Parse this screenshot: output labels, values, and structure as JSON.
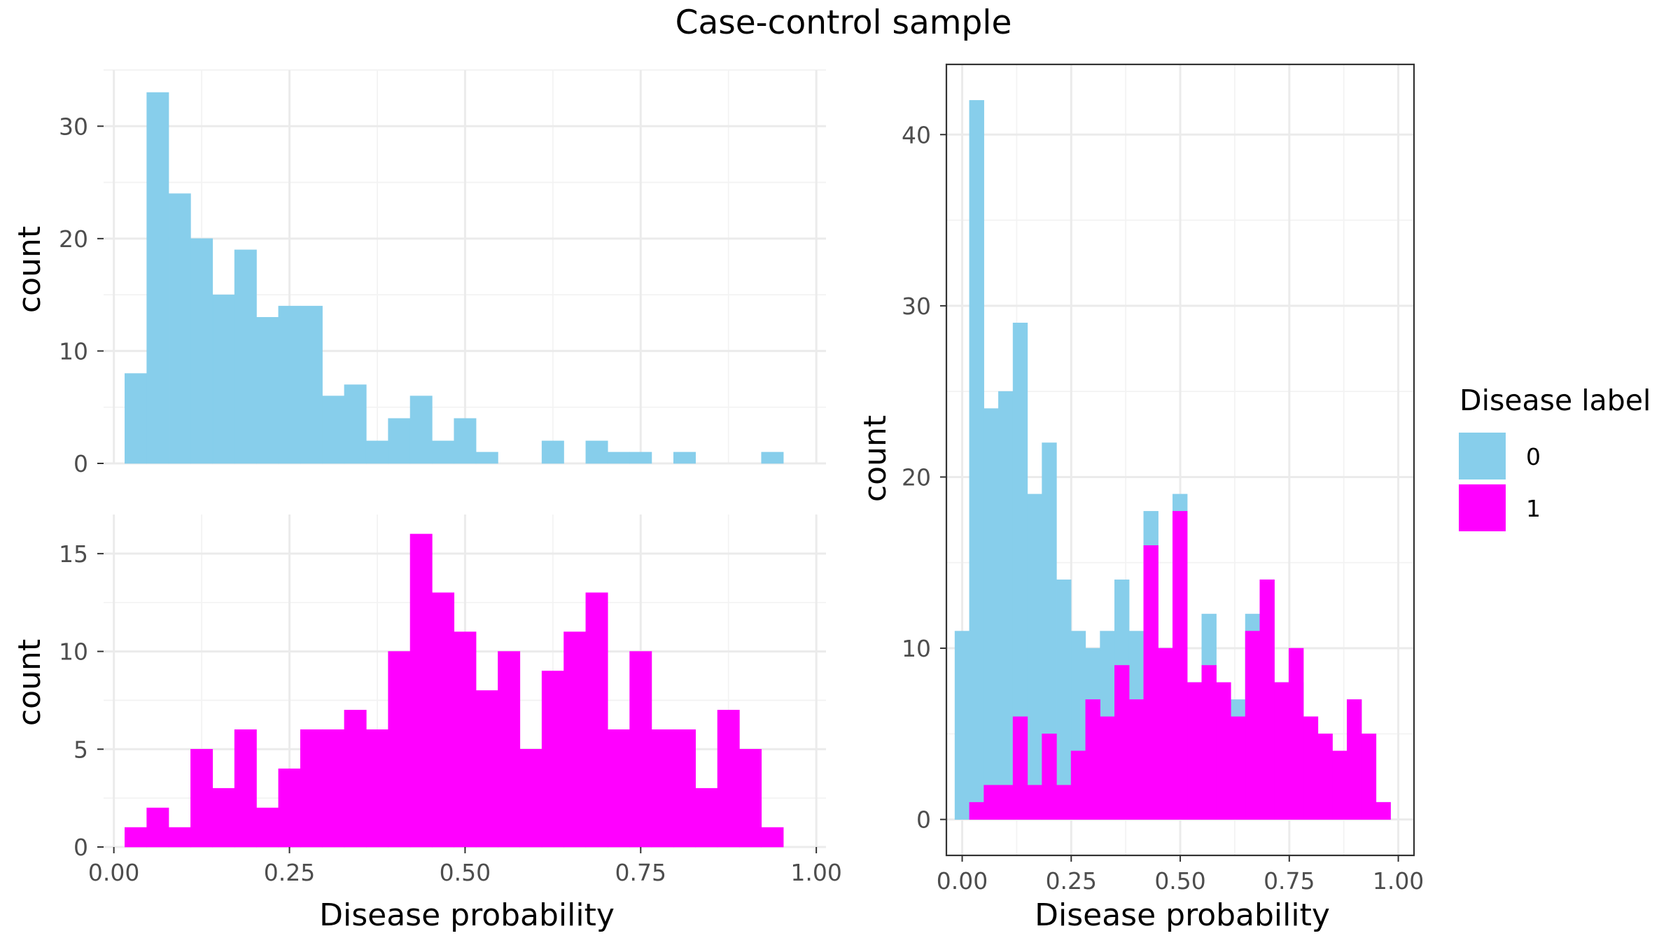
{
  "figure": {
    "title": "Case-control sample"
  },
  "colors": {
    "control": "#87CEEB",
    "case": "#FF00FF"
  },
  "legend": {
    "title": "Disease label",
    "items": [
      {
        "label": "0",
        "color": "#87CEEB"
      },
      {
        "label": "1",
        "color": "#FF00FF"
      }
    ],
    "position": "right"
  },
  "chart_data": [
    {
      "type": "bar",
      "panel": "top-left",
      "ylabel": "count",
      "xlabel": "",
      "xlim": [
        -0.0146,
        1.0138
      ],
      "ylim": [
        0,
        35
      ],
      "bin_width": 0.03125,
      "bin_start": 0.015625,
      "yticks": [
        0,
        10,
        20,
        30
      ],
      "xticks": [
        0.0,
        0.25,
        0.5,
        0.75,
        1.0
      ],
      "show_x_tick_labels": false,
      "panel_border": false,
      "grid": true,
      "series": [
        {
          "name": "0",
          "values": [
            8,
            33,
            24,
            20,
            15,
            19,
            13,
            14,
            14,
            6,
            7,
            2,
            4,
            6,
            2,
            4,
            1,
            0,
            0,
            2,
            0,
            2,
            1,
            1,
            0,
            1,
            0,
            0,
            0,
            1
          ]
        }
      ]
    },
    {
      "type": "bar",
      "panel": "bottom-left",
      "ylabel": "count",
      "xlabel": "Disease probability",
      "xlim": [
        -0.0146,
        1.0138
      ],
      "ylim": [
        0,
        17
      ],
      "bin_width": 0.03125,
      "bin_start": 0.015625,
      "yticks": [
        0,
        5,
        10,
        15
      ],
      "xticks": [
        0.0,
        0.25,
        0.5,
        0.75,
        1.0
      ],
      "xtick_labels": [
        "0.00",
        "0.25",
        "0.50",
        "0.75",
        "1.00"
      ],
      "show_x_tick_labels": true,
      "panel_border": false,
      "grid": true,
      "series": [
        {
          "name": "1",
          "values": [
            1,
            2,
            1,
            5,
            3,
            6,
            2,
            4,
            6,
            6,
            7,
            6,
            10,
            16,
            13,
            11,
            8,
            10,
            5,
            9,
            11,
            13,
            6,
            10,
            6,
            6,
            3,
            7,
            5,
            1
          ]
        }
      ]
    },
    {
      "type": "bar",
      "panel": "right",
      "ylabel": "count",
      "xlabel": "Disease probability",
      "xlim": [
        -0.0362,
        1.036
      ],
      "ylim": [
        -2.1,
        44.1
      ],
      "bin_width": 0.0333,
      "bin_start": -0.0167,
      "yticks": [
        0,
        10,
        20,
        30,
        40
      ],
      "xticks": [
        0.0,
        0.25,
        0.5,
        0.75,
        1.0
      ],
      "xtick_labels": [
        "0.00",
        "0.25",
        "0.50",
        "0.75",
        "1.00"
      ],
      "show_x_tick_labels": true,
      "panel_border": true,
      "grid": true,
      "stacking": "overlay",
      "series": [
        {
          "name": "0",
          "values": [
            11,
            42,
            24,
            25,
            29,
            19,
            22,
            14,
            11,
            10,
            11,
            14,
            11,
            18,
            10,
            19,
            8,
            12,
            6,
            7,
            12,
            14,
            8,
            8,
            6,
            3,
            4,
            7,
            5,
            1
          ]
        },
        {
          "name": "1",
          "values": [
            0,
            1,
            2,
            2,
            6,
            2,
            5,
            2,
            4,
            7,
            6,
            9,
            7,
            16,
            10,
            18,
            8,
            9,
            8,
            6,
            11,
            14,
            8,
            10,
            6,
            5,
            4,
            7,
            5,
            1
          ]
        }
      ]
    }
  ]
}
